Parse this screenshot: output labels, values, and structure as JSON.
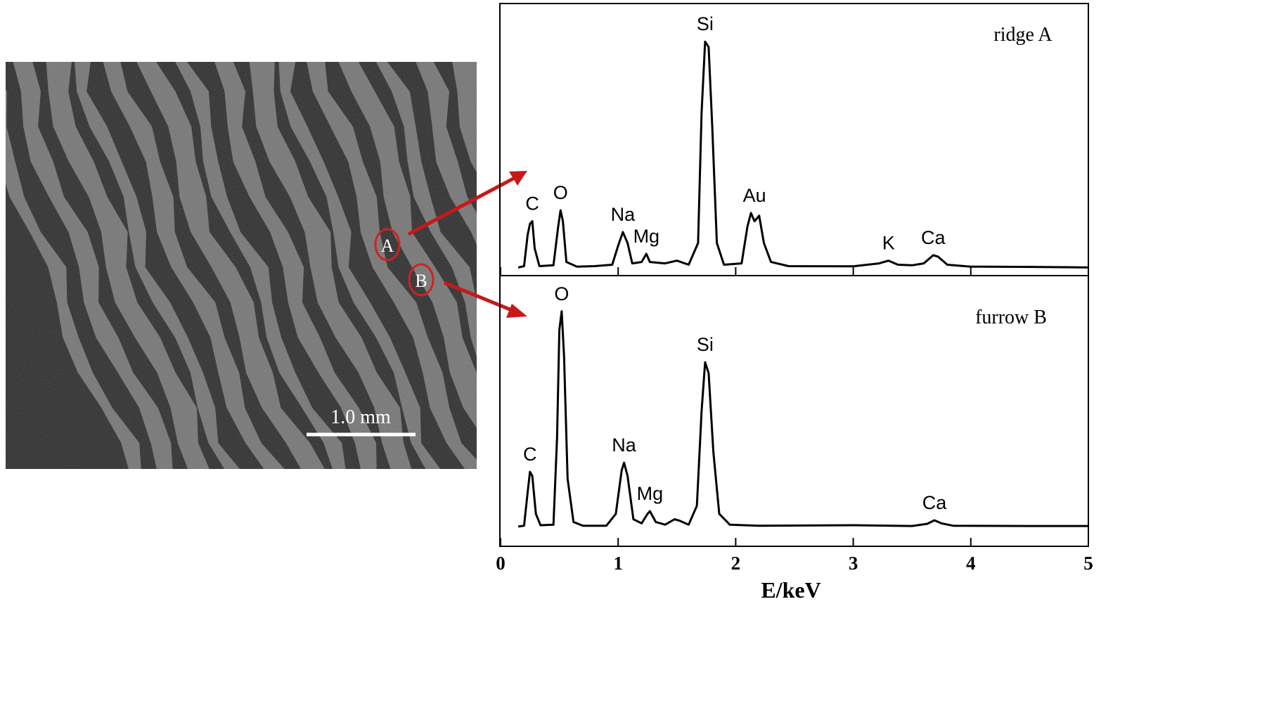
{
  "image": {
    "scale_bar": "1.0 mm",
    "markers": [
      "A",
      "B"
    ]
  },
  "chart_data": [
    {
      "type": "line",
      "panel_label": "ridge A",
      "xlim": [
        0,
        5
      ],
      "ylim": [
        0,
        100
      ],
      "series": [
        {
          "color": "#000000",
          "x": [
            0.15,
            0.2,
            0.23,
            0.25,
            0.27,
            0.29,
            0.33,
            0.45,
            0.49,
            0.51,
            0.53,
            0.56,
            0.65,
            0.8,
            0.95,
            1.0,
            1.04,
            1.08,
            1.12,
            1.2,
            1.24,
            1.27,
            1.4,
            1.5,
            1.6,
            1.68,
            1.71,
            1.74,
            1.77,
            1.8,
            1.84,
            1.9,
            2.05,
            2.1,
            2.13,
            2.16,
            2.2,
            2.24,
            2.3,
            2.45,
            3.0,
            3.22,
            3.3,
            3.38,
            3.5,
            3.6,
            3.68,
            3.72,
            3.8,
            4.0,
            4.5,
            5.0
          ],
          "values": [
            3,
            3.5,
            15,
            19,
            20,
            10,
            3.5,
            3.8,
            18,
            24,
            20,
            5,
            3.3,
            3.5,
            4,
            11,
            16,
            12,
            4.5,
            5,
            8,
            5,
            4.5,
            5.5,
            4,
            12,
            60,
            86,
            84,
            55,
            12,
            4,
            4.5,
            18,
            23,
            20,
            22,
            12,
            5,
            3.5,
            3.4,
            4.5,
            5.5,
            4,
            3.8,
            4.5,
            7.5,
            7,
            4,
            3.3,
            3.2,
            3
          ]
        }
      ],
      "annotations": [
        {
          "text": "C",
          "x": 0.27
        },
        {
          "text": "O",
          "x": 0.51
        },
        {
          "text": "Na",
          "x": 1.04
        },
        {
          "text": "Mg",
          "x": 1.24
        },
        {
          "text": "Si",
          "x": 1.74
        },
        {
          "text": "Au",
          "x": 2.16
        },
        {
          "text": "K",
          "x": 3.3
        },
        {
          "text": "Ca",
          "x": 3.68
        }
      ]
    },
    {
      "type": "line",
      "panel_label": "furrow B",
      "xlabel": "E/keV",
      "xlim": [
        0,
        5
      ],
      "xticks": [
        0,
        1,
        2,
        3,
        4,
        5
      ],
      "ylim": [
        0,
        100
      ],
      "series": [
        {
          "color": "#000000",
          "x": [
            0.15,
            0.2,
            0.23,
            0.25,
            0.27,
            0.3,
            0.34,
            0.45,
            0.48,
            0.5,
            0.52,
            0.54,
            0.57,
            0.62,
            0.7,
            0.9,
            0.98,
            1.03,
            1.05,
            1.08,
            1.13,
            1.2,
            1.25,
            1.27,
            1.32,
            1.4,
            1.48,
            1.52,
            1.6,
            1.67,
            1.71,
            1.74,
            1.77,
            1.81,
            1.86,
            1.95,
            2.2,
            3.0,
            3.5,
            3.63,
            3.69,
            3.75,
            3.85,
            4.5,
            5.0
          ],
          "values": [
            7.3,
            7.6,
            20,
            27.5,
            26,
            12,
            7.8,
            8,
            40,
            80,
            86.8,
            70,
            25,
            9,
            7.6,
            7.6,
            12,
            28,
            30.9,
            26,
            10,
            8.5,
            12,
            13,
            9,
            8,
            10,
            9.5,
            8,
            15,
            50,
            68,
            64,
            35,
            12,
            8,
            7.6,
            7.8,
            7.5,
            8.3,
            9.6,
            8.5,
            7.6,
            7.5,
            7.5
          ]
        }
      ],
      "annotations": [
        {
          "text": "C",
          "x": 0.25
        },
        {
          "text": "O",
          "x": 0.52
        },
        {
          "text": "Na",
          "x": 1.05
        },
        {
          "text": "Mg",
          "x": 1.27
        },
        {
          "text": "Si",
          "x": 1.74
        },
        {
          "text": "Ca",
          "x": 3.69
        }
      ]
    }
  ]
}
